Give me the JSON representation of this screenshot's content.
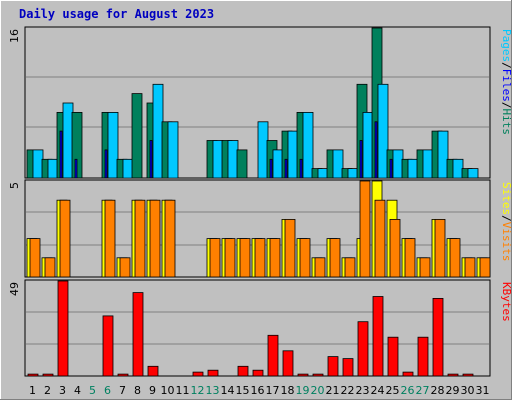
{
  "chart_data": [
    {
      "type": "bar",
      "title": "Daily usage for August 2023",
      "categories": [
        "1",
        "2",
        "3",
        "4",
        "5",
        "6",
        "7",
        "8",
        "9",
        "10",
        "11",
        "12",
        "13",
        "14",
        "15",
        "16",
        "17",
        "18",
        "19",
        "20",
        "21",
        "22",
        "23",
        "24",
        "25",
        "26",
        "27",
        "28",
        "29",
        "30",
        "31"
      ],
      "weekend_days": [
        "5",
        "6",
        "12",
        "13",
        "19",
        "20",
        "26",
        "27"
      ],
      "panel": "top",
      "ymax_label": "16",
      "ylim": [
        0,
        16
      ],
      "right_label": {
        "parts": [
          "Pages",
          "/",
          "Files",
          "/",
          "Hits"
        ]
      },
      "series": [
        {
          "name": "Hits",
          "color": "#00805c",
          "values": [
            3,
            2,
            7,
            7,
            0,
            7,
            2,
            9,
            8,
            6,
            0,
            0,
            4,
            4,
            3,
            0,
            4,
            5,
            7,
            1,
            3,
            1,
            10,
            16,
            3,
            2,
            3,
            5,
            2,
            1,
            0
          ]
        },
        {
          "name": "Files",
          "color": "#0000ff",
          "values": [
            0,
            0,
            5,
            2,
            0,
            3,
            0,
            0,
            4,
            0,
            0,
            0,
            0,
            0,
            0,
            0,
            2,
            2,
            2,
            0,
            0,
            0,
            4,
            6,
            2,
            0,
            0,
            0,
            0,
            0,
            0
          ]
        },
        {
          "name": "Pages",
          "color": "#00c8ff",
          "values": [
            3,
            2,
            8,
            0,
            0,
            7,
            2,
            0,
            10,
            6,
            0,
            0,
            4,
            4,
            0,
            6,
            3,
            5,
            7,
            1,
            3,
            1,
            7,
            10,
            3,
            2,
            3,
            5,
            2,
            1,
            0
          ]
        }
      ]
    },
    {
      "type": "bar",
      "panel": "middle",
      "ymax_label": "5",
      "ylim": [
        0,
        5
      ],
      "right_label": {
        "parts": [
          "Sites",
          "/",
          "Visits"
        ]
      },
      "series": [
        {
          "name": "Sites",
          "color": "#ffff00",
          "values": [
            2,
            1,
            4,
            0,
            0,
            4,
            1,
            4,
            4,
            4,
            0,
            0,
            2,
            2,
            2,
            2,
            2,
            3,
            2,
            1,
            2,
            1,
            2,
            5,
            4,
            2,
            1,
            3,
            2,
            1,
            1
          ]
        },
        {
          "name": "Visits",
          "color": "#ff8000",
          "values": [
            2,
            1,
            4,
            0,
            0,
            4,
            1,
            4,
            4,
            4,
            0,
            0,
            2,
            2,
            2,
            2,
            2,
            3,
            2,
            1,
            2,
            1,
            5,
            4,
            3,
            2,
            1,
            3,
            2,
            1,
            1
          ]
        }
      ]
    },
    {
      "type": "bar",
      "panel": "bottom",
      "ymax_label": "49",
      "ylim": [
        0,
        49
      ],
      "right_label": {
        "parts": [
          "KBytes"
        ]
      },
      "series": [
        {
          "name": "KBytes",
          "color": "#ff0000",
          "values": [
            1,
            1,
            49,
            0,
            0,
            31,
            1,
            43,
            5,
            0,
            0,
            2,
            3,
            0,
            5,
            3,
            21,
            13,
            1,
            1,
            10,
            9,
            28,
            41,
            20,
            2,
            20,
            40,
            1,
            1,
            0
          ]
        }
      ]
    }
  ],
  "colors": {
    "background": "#c0c0c0",
    "title": "#0000c0",
    "gridline": "#808080",
    "weekday_label": "#000000",
    "weekend_label": "#008060"
  }
}
